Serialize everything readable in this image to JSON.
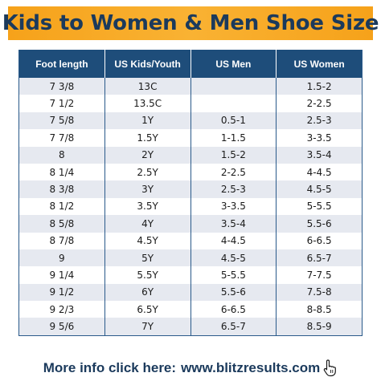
{
  "title": "Kids to Women & Men Shoe Size",
  "table": {
    "headers": [
      "Foot length",
      "US Kids/Youth",
      "US Men",
      "US Women"
    ],
    "rows": [
      [
        "7 3/8",
        "13C",
        "",
        "1.5-2"
      ],
      [
        "7 1/2",
        "13.5C",
        "",
        "2-2.5"
      ],
      [
        "7 5/8",
        "1Y",
        "0.5-1",
        "2.5-3"
      ],
      [
        "7 7/8",
        "1.5Y",
        "1-1.5",
        "3-3.5"
      ],
      [
        "8",
        "2Y",
        "1.5-2",
        "3.5-4"
      ],
      [
        "8 1/4",
        "2.5Y",
        "2-2.5",
        "4-4.5"
      ],
      [
        "8 3/8",
        "3Y",
        "2.5-3",
        "4.5-5"
      ],
      [
        "8 1/2",
        "3.5Y",
        "3-3.5",
        "5-5.5"
      ],
      [
        "8 5/8",
        "4Y",
        "3.5-4",
        "5.5-6"
      ],
      [
        "8 7/8",
        "4.5Y",
        "4-4.5",
        "6-6.5"
      ],
      [
        "9",
        "5Y",
        "4.5-5",
        "6.5-7"
      ],
      [
        "9 1/4",
        "5.5Y",
        "5-5.5",
        "7-7.5"
      ],
      [
        "9 1/2",
        "6Y",
        "5.5-6",
        "7.5-8"
      ],
      [
        "9 2/3",
        "6.5Y",
        "6-6.5",
        "8-8.5"
      ],
      [
        "9 5/6",
        "7Y",
        "6.5-7",
        "8.5-9"
      ]
    ]
  },
  "footer": {
    "label": "More info click here:",
    "link": "www.blitzresults.com",
    "icon": "hand-pointer-icon"
  },
  "colors": {
    "banner": "#f9b233",
    "title_text": "#1b3a5c",
    "header_bg": "#1e4d7a",
    "row_alt": "#e6e9f0"
  }
}
